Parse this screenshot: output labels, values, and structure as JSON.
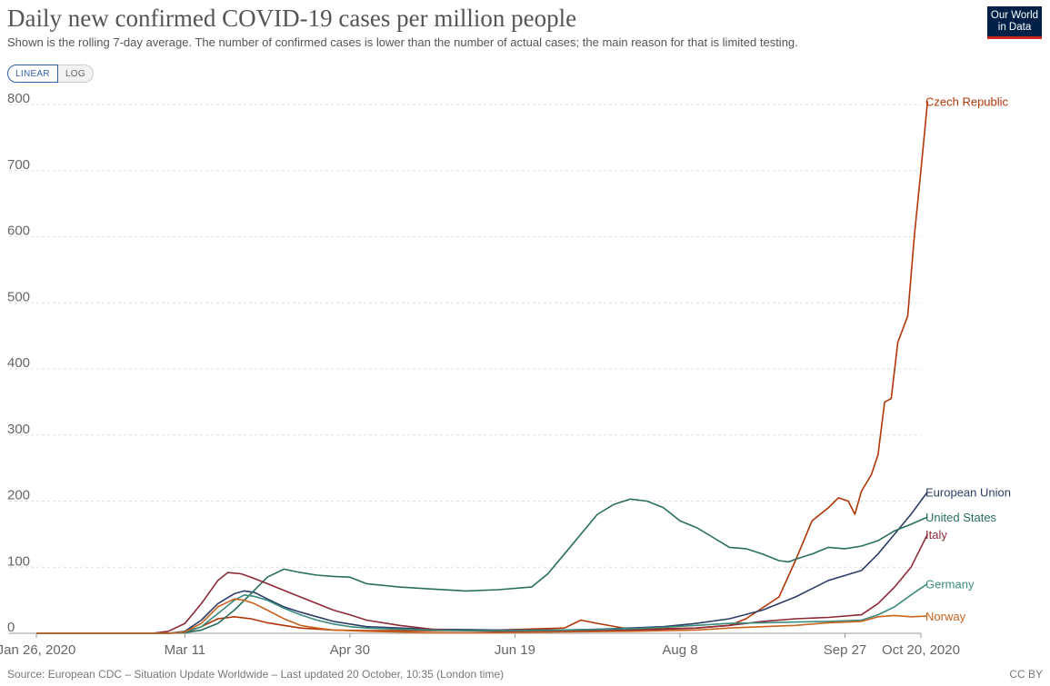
{
  "header": {
    "title": "Daily new confirmed COVID-19 cases per million people",
    "subtitle": "Shown is the rolling 7-day average. The number of confirmed cases is lower than the number of actual cases; the main reason for that is limited testing."
  },
  "logo": {
    "line1": "Our World",
    "line2": "in Data"
  },
  "scale_toggle": {
    "linear_label": "LINEAR",
    "log_label": "LOG",
    "selected": "LINEAR"
  },
  "footer": {
    "source": "Source: European CDC – Situation Update Worldwide – Last updated 20 October, 10:35 (London time)",
    "license": "CC BY"
  },
  "chart_data": {
    "type": "line",
    "title": "Daily new confirmed COVID-19 cases per million people",
    "xlabel": "",
    "ylabel": "",
    "x_unit": "days since Jan 26, 2020",
    "xlim": [
      0,
      268
    ],
    "ylim": [
      0,
      800
    ],
    "y_ticks": [
      0,
      100,
      200,
      300,
      400,
      500,
      600,
      700,
      800
    ],
    "x_ticks": [
      {
        "day": 0,
        "label": "Jan 26, 2020"
      },
      {
        "day": 45,
        "label": "Mar 11"
      },
      {
        "day": 95,
        "label": "Apr 30"
      },
      {
        "day": 145,
        "label": "Jun 19"
      },
      {
        "day": 195,
        "label": "Aug 8"
      },
      {
        "day": 245,
        "label": "Sep 27"
      },
      {
        "day": 268,
        "label": "Oct 20, 2020"
      }
    ],
    "grid": true,
    "series": [
      {
        "name": "Czech Republic",
        "color": "#b13507",
        "points": [
          [
            0,
            0
          ],
          [
            40,
            0
          ],
          [
            45,
            1
          ],
          [
            50,
            10
          ],
          [
            55,
            22
          ],
          [
            60,
            25
          ],
          [
            65,
            22
          ],
          [
            70,
            16
          ],
          [
            75,
            12
          ],
          [
            80,
            8
          ],
          [
            90,
            5
          ],
          [
            100,
            4
          ],
          [
            120,
            4
          ],
          [
            140,
            5
          ],
          [
            160,
            8
          ],
          [
            165,
            20
          ],
          [
            170,
            15
          ],
          [
            180,
            6
          ],
          [
            200,
            8
          ],
          [
            210,
            12
          ],
          [
            215,
            22
          ],
          [
            225,
            55
          ],
          [
            230,
            110
          ],
          [
            235,
            170
          ],
          [
            240,
            190
          ],
          [
            243,
            205
          ],
          [
            246,
            200
          ],
          [
            248,
            180
          ],
          [
            250,
            215
          ],
          [
            253,
            240
          ],
          [
            255,
            270
          ],
          [
            257,
            350
          ],
          [
            259,
            355
          ],
          [
            261,
            440
          ],
          [
            264,
            480
          ],
          [
            266,
            600
          ],
          [
            268,
            700
          ],
          [
            270,
            805
          ]
        ]
      },
      {
        "name": "European Union",
        "color": "#18470f",
        "strokeColor": "#2c3e66",
        "points": [
          [
            0,
            0
          ],
          [
            40,
            0
          ],
          [
            45,
            3
          ],
          [
            50,
            20
          ],
          [
            55,
            45
          ],
          [
            60,
            60
          ],
          [
            63,
            64
          ],
          [
            66,
            62
          ],
          [
            70,
            52
          ],
          [
            75,
            40
          ],
          [
            80,
            32
          ],
          [
            85,
            25
          ],
          [
            90,
            18
          ],
          [
            95,
            14
          ],
          [
            100,
            10
          ],
          [
            110,
            8
          ],
          [
            120,
            6
          ],
          [
            140,
            5
          ],
          [
            160,
            5
          ],
          [
            170,
            6
          ],
          [
            180,
            8
          ],
          [
            190,
            10
          ],
          [
            200,
            15
          ],
          [
            210,
            22
          ],
          [
            220,
            35
          ],
          [
            230,
            55
          ],
          [
            240,
            80
          ],
          [
            250,
            95
          ],
          [
            255,
            120
          ],
          [
            260,
            150
          ],
          [
            265,
            180
          ],
          [
            270,
            214
          ]
        ]
      },
      {
        "name": "United States",
        "color": "#286e5f",
        "points": [
          [
            0,
            0
          ],
          [
            40,
            0
          ],
          [
            45,
            1
          ],
          [
            50,
            5
          ],
          [
            55,
            15
          ],
          [
            60,
            35
          ],
          [
            65,
            60
          ],
          [
            70,
            85
          ],
          [
            75,
            97
          ],
          [
            80,
            92
          ],
          [
            85,
            88
          ],
          [
            90,
            86
          ],
          [
            95,
            85
          ],
          [
            100,
            75
          ],
          [
            110,
            70
          ],
          [
            120,
            67
          ],
          [
            130,
            64
          ],
          [
            140,
            66
          ],
          [
            150,
            70
          ],
          [
            155,
            90
          ],
          [
            160,
            120
          ],
          [
            165,
            150
          ],
          [
            170,
            180
          ],
          [
            175,
            195
          ],
          [
            180,
            203
          ],
          [
            185,
            200
          ],
          [
            190,
            190
          ],
          [
            195,
            170
          ],
          [
            200,
            160
          ],
          [
            205,
            145
          ],
          [
            210,
            130
          ],
          [
            215,
            128
          ],
          [
            220,
            120
          ],
          [
            225,
            110
          ],
          [
            228,
            108
          ],
          [
            230,
            112
          ],
          [
            235,
            120
          ],
          [
            240,
            130
          ],
          [
            245,
            128
          ],
          [
            250,
            132
          ],
          [
            255,
            140
          ],
          [
            260,
            155
          ],
          [
            265,
            165
          ],
          [
            270,
            176
          ]
        ]
      },
      {
        "name": "Italy",
        "color": "#6d3e91",
        "strokeColor": "#8c2a36",
        "points": [
          [
            0,
            0
          ],
          [
            35,
            0
          ],
          [
            40,
            3
          ],
          [
            45,
            15
          ],
          [
            50,
            45
          ],
          [
            55,
            80
          ],
          [
            58,
            92
          ],
          [
            62,
            90
          ],
          [
            65,
            85
          ],
          [
            70,
            75
          ],
          [
            75,
            65
          ],
          [
            80,
            55
          ],
          [
            85,
            45
          ],
          [
            90,
            35
          ],
          [
            95,
            28
          ],
          [
            100,
            20
          ],
          [
            110,
            12
          ],
          [
            120,
            6
          ],
          [
            130,
            4
          ],
          [
            140,
            3
          ],
          [
            160,
            3
          ],
          [
            180,
            5
          ],
          [
            190,
            6
          ],
          [
            200,
            8
          ],
          [
            210,
            12
          ],
          [
            220,
            18
          ],
          [
            230,
            22
          ],
          [
            240,
            24
          ],
          [
            250,
            28
          ],
          [
            255,
            45
          ],
          [
            260,
            70
          ],
          [
            265,
            100
          ],
          [
            270,
            150
          ]
        ]
      },
      {
        "name": "Germany",
        "color": "#00847e",
        "strokeColor": "#3a8c7e",
        "points": [
          [
            0,
            0
          ],
          [
            40,
            0
          ],
          [
            45,
            2
          ],
          [
            50,
            10
          ],
          [
            55,
            30
          ],
          [
            60,
            50
          ],
          [
            63,
            58
          ],
          [
            66,
            56
          ],
          [
            70,
            50
          ],
          [
            75,
            38
          ],
          [
            80,
            28
          ],
          [
            85,
            20
          ],
          [
            90,
            14
          ],
          [
            95,
            10
          ],
          [
            100,
            8
          ],
          [
            110,
            6
          ],
          [
            120,
            5
          ],
          [
            130,
            4
          ],
          [
            140,
            4
          ],
          [
            160,
            5
          ],
          [
            180,
            7
          ],
          [
            190,
            9
          ],
          [
            200,
            12
          ],
          [
            210,
            15
          ],
          [
            220,
            16
          ],
          [
            230,
            17
          ],
          [
            240,
            18
          ],
          [
            250,
            20
          ],
          [
            255,
            28
          ],
          [
            260,
            40
          ],
          [
            265,
            58
          ],
          [
            270,
            75
          ]
        ]
      },
      {
        "name": "Norway",
        "color": "#c15065",
        "strokeColor": "#c96420",
        "points": [
          [
            0,
            0
          ],
          [
            40,
            0
          ],
          [
            45,
            2
          ],
          [
            50,
            15
          ],
          [
            55,
            40
          ],
          [
            60,
            52
          ],
          [
            63,
            50
          ],
          [
            66,
            45
          ],
          [
            70,
            35
          ],
          [
            75,
            22
          ],
          [
            80,
            12
          ],
          [
            85,
            8
          ],
          [
            90,
            5
          ],
          [
            100,
            3
          ],
          [
            120,
            1
          ],
          [
            140,
            1
          ],
          [
            160,
            2
          ],
          [
            180,
            3
          ],
          [
            200,
            5
          ],
          [
            210,
            8
          ],
          [
            220,
            10
          ],
          [
            230,
            12
          ],
          [
            240,
            16
          ],
          [
            250,
            18
          ],
          [
            255,
            25
          ],
          [
            260,
            27
          ],
          [
            265,
            25
          ],
          [
            270,
            26
          ]
        ]
      }
    ]
  }
}
